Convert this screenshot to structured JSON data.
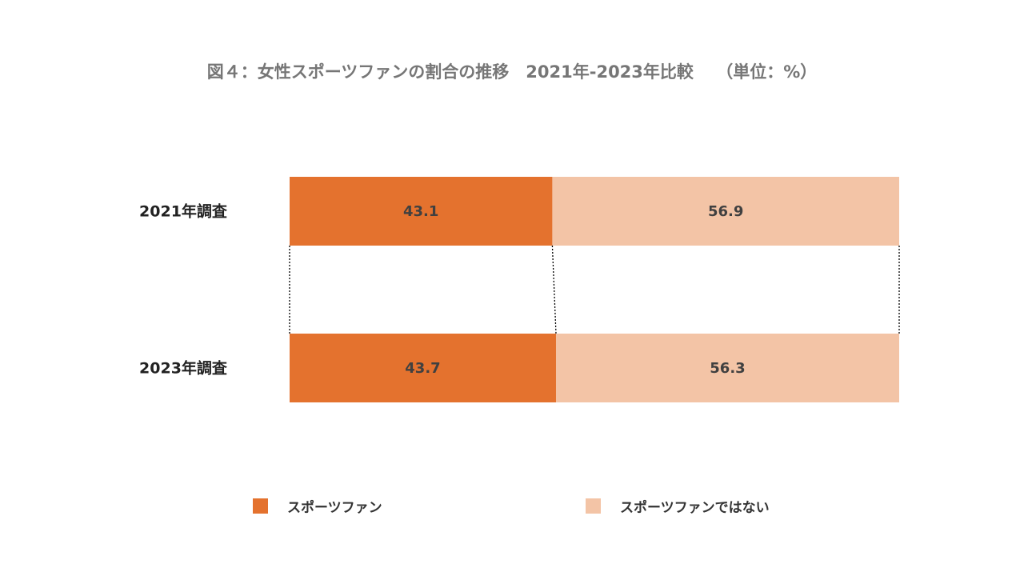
{
  "title": "図４：女性スポーツファンの割合の推移　2021年-2023年比較　 （単位：%）",
  "colors": {
    "fan": "#e4722e",
    "non_fan": "#f3c4a6",
    "bar_text": "#404040",
    "category_text": "#222222",
    "connector": "#000000"
  },
  "chart_data": {
    "type": "bar",
    "orientation": "horizontal",
    "stacked": true,
    "title": "図４：女性スポーツファンの割合の推移　2021年-2023年比較　 （単位：%）",
    "unit": "%",
    "categories": [
      "2021年調査",
      "2023年調査"
    ],
    "series": [
      {
        "name": "スポーツファン",
        "values": [
          43.1,
          43.7
        ],
        "labels": [
          "43.1",
          "43.7"
        ]
      },
      {
        "name": "スポーツファンではない",
        "values": [
          56.9,
          56.3
        ],
        "labels": [
          "56.9",
          "56.3"
        ]
      }
    ],
    "xlim": [
      0,
      100
    ],
    "grid": false,
    "legend": "bottom"
  }
}
